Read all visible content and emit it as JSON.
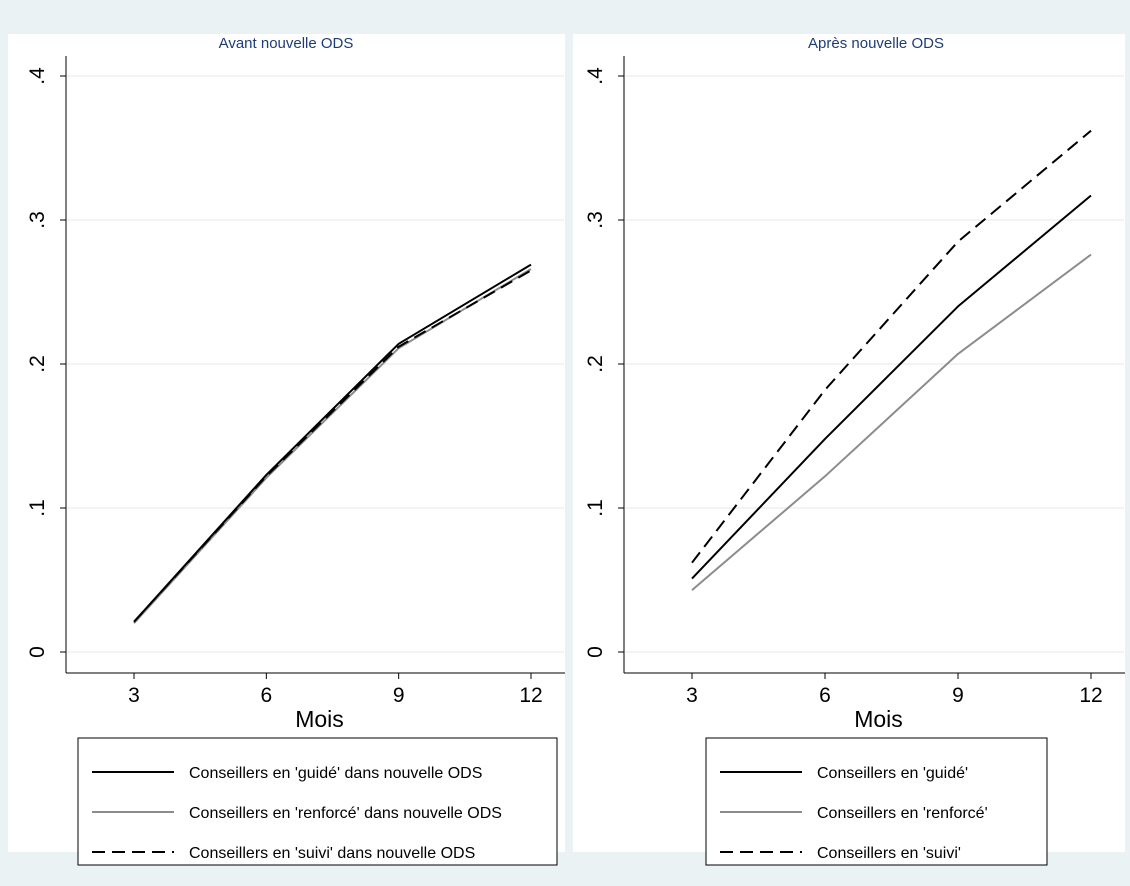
{
  "chart_data": [
    {
      "type": "line",
      "title": "Avant nouvelle ODS",
      "xlabel": "Mois",
      "ylabel": "",
      "x": [
        3,
        6,
        9,
        12
      ],
      "xticks": [
        "3",
        "6",
        "9",
        "12"
      ],
      "yticks": [
        "0",
        ".1",
        ".2",
        ".3",
        ".4"
      ],
      "ylim": [
        0,
        0.4
      ],
      "grid": true,
      "legend_position": "bottom",
      "series": [
        {
          "name": "Conseillers en 'guidé' dans nouvelle ODS",
          "values": [
            0.021,
            0.123,
            0.214,
            0.269
          ],
          "color": "#000000",
          "dash": "solid"
        },
        {
          "name": "Conseillers en 'renforcé' dans nouvelle ODS",
          "values": [
            0.02,
            0.121,
            0.211,
            0.266
          ],
          "color": "#8c8c8c",
          "dash": "solid"
        },
        {
          "name": "Conseillers en 'suivi' dans nouvelle ODS",
          "values": [
            0.021,
            0.122,
            0.212,
            0.265
          ],
          "color": "#000000",
          "dash": "dashed"
        }
      ]
    },
    {
      "type": "line",
      "title": "Après nouvelle ODS",
      "xlabel": "Mois",
      "ylabel": "",
      "x": [
        3,
        6,
        9,
        12
      ],
      "xticks": [
        "3",
        "6",
        "9",
        "12"
      ],
      "yticks": [
        "0",
        ".1",
        ".2",
        ".3",
        ".4"
      ],
      "ylim": [
        0,
        0.4
      ],
      "grid": true,
      "legend_position": "bottom",
      "series": [
        {
          "name": "Conseillers en 'guidé'",
          "values": [
            0.051,
            0.148,
            0.24,
            0.317
          ],
          "color": "#000000",
          "dash": "solid"
        },
        {
          "name": "Conseillers en 'renforcé'",
          "values": [
            0.043,
            0.122,
            0.207,
            0.276
          ],
          "color": "#8c8c8c",
          "dash": "solid"
        },
        {
          "name": "Conseillers en 'suivi'",
          "values": [
            0.062,
            0.182,
            0.285,
            0.362
          ],
          "color": "#000000",
          "dash": "dashed"
        }
      ]
    }
  ]
}
